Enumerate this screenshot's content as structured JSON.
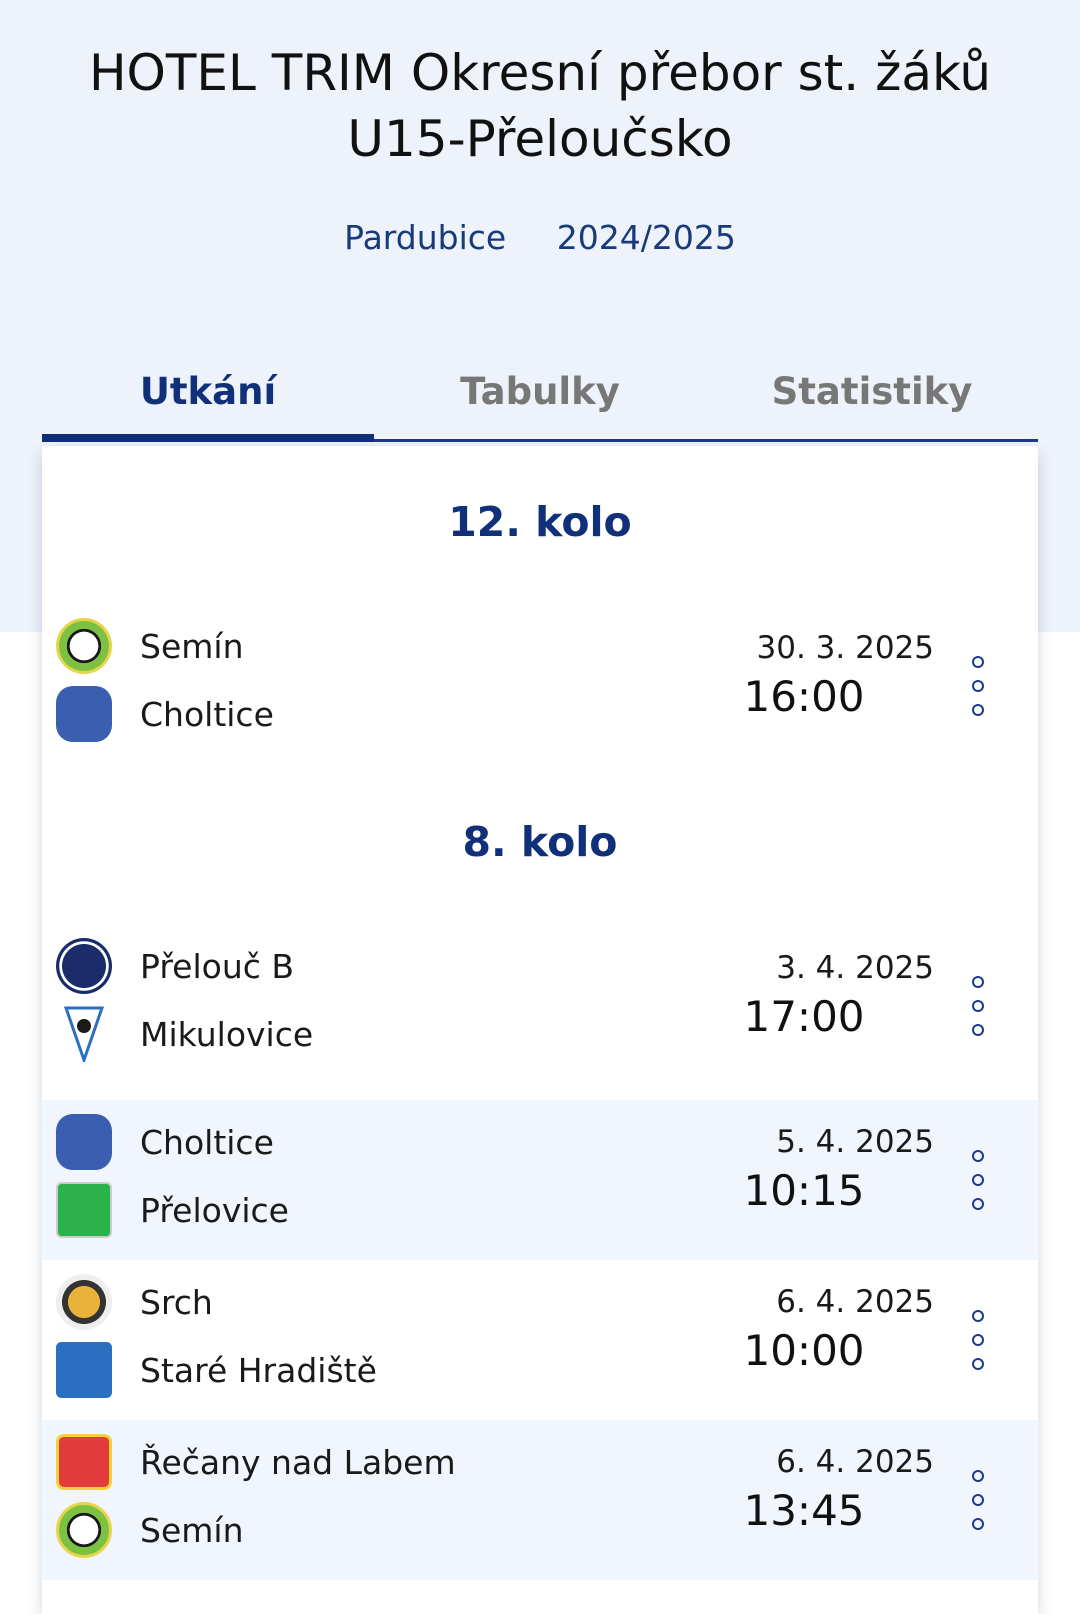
{
  "header": {
    "title": "HOTEL TRIM Okresní přebor st. žáků U15-Přeloučsko",
    "region": "Pardubice",
    "season": "2024/2025"
  },
  "tabs": [
    {
      "label": "Utkání",
      "active": true
    },
    {
      "label": "Tabulky",
      "active": false
    },
    {
      "label": "Statistiky",
      "active": false
    }
  ],
  "rounds": [
    {
      "label": "12. kolo",
      "matches": [
        {
          "home": "Semín",
          "away": "Choltice",
          "date": "30. 3. 2025",
          "time": "16:00"
        }
      ]
    },
    {
      "label": "8. kolo",
      "matches": [
        {
          "home": "Přelouč B",
          "away": "Mikulovice",
          "date": "3. 4. 2025",
          "time": "17:00"
        },
        {
          "home": "Choltice",
          "away": "Přelovice",
          "date": "5. 4. 2025",
          "time": "10:15"
        },
        {
          "home": "Srch",
          "away": "Staré Hradiště",
          "date": "6. 4. 2025",
          "time": "10:00"
        },
        {
          "home": "Řečany nad Labem",
          "away": "Semín",
          "date": "6. 4. 2025",
          "time": "13:45"
        }
      ]
    }
  ],
  "icons": {
    "more": "more-vertical-icon",
    "team_logo": "team-logo-icon"
  },
  "colors": {
    "accent": "#11307a",
    "hero_bg": "#eef2fb",
    "row_shade": "#f1f5fd"
  }
}
